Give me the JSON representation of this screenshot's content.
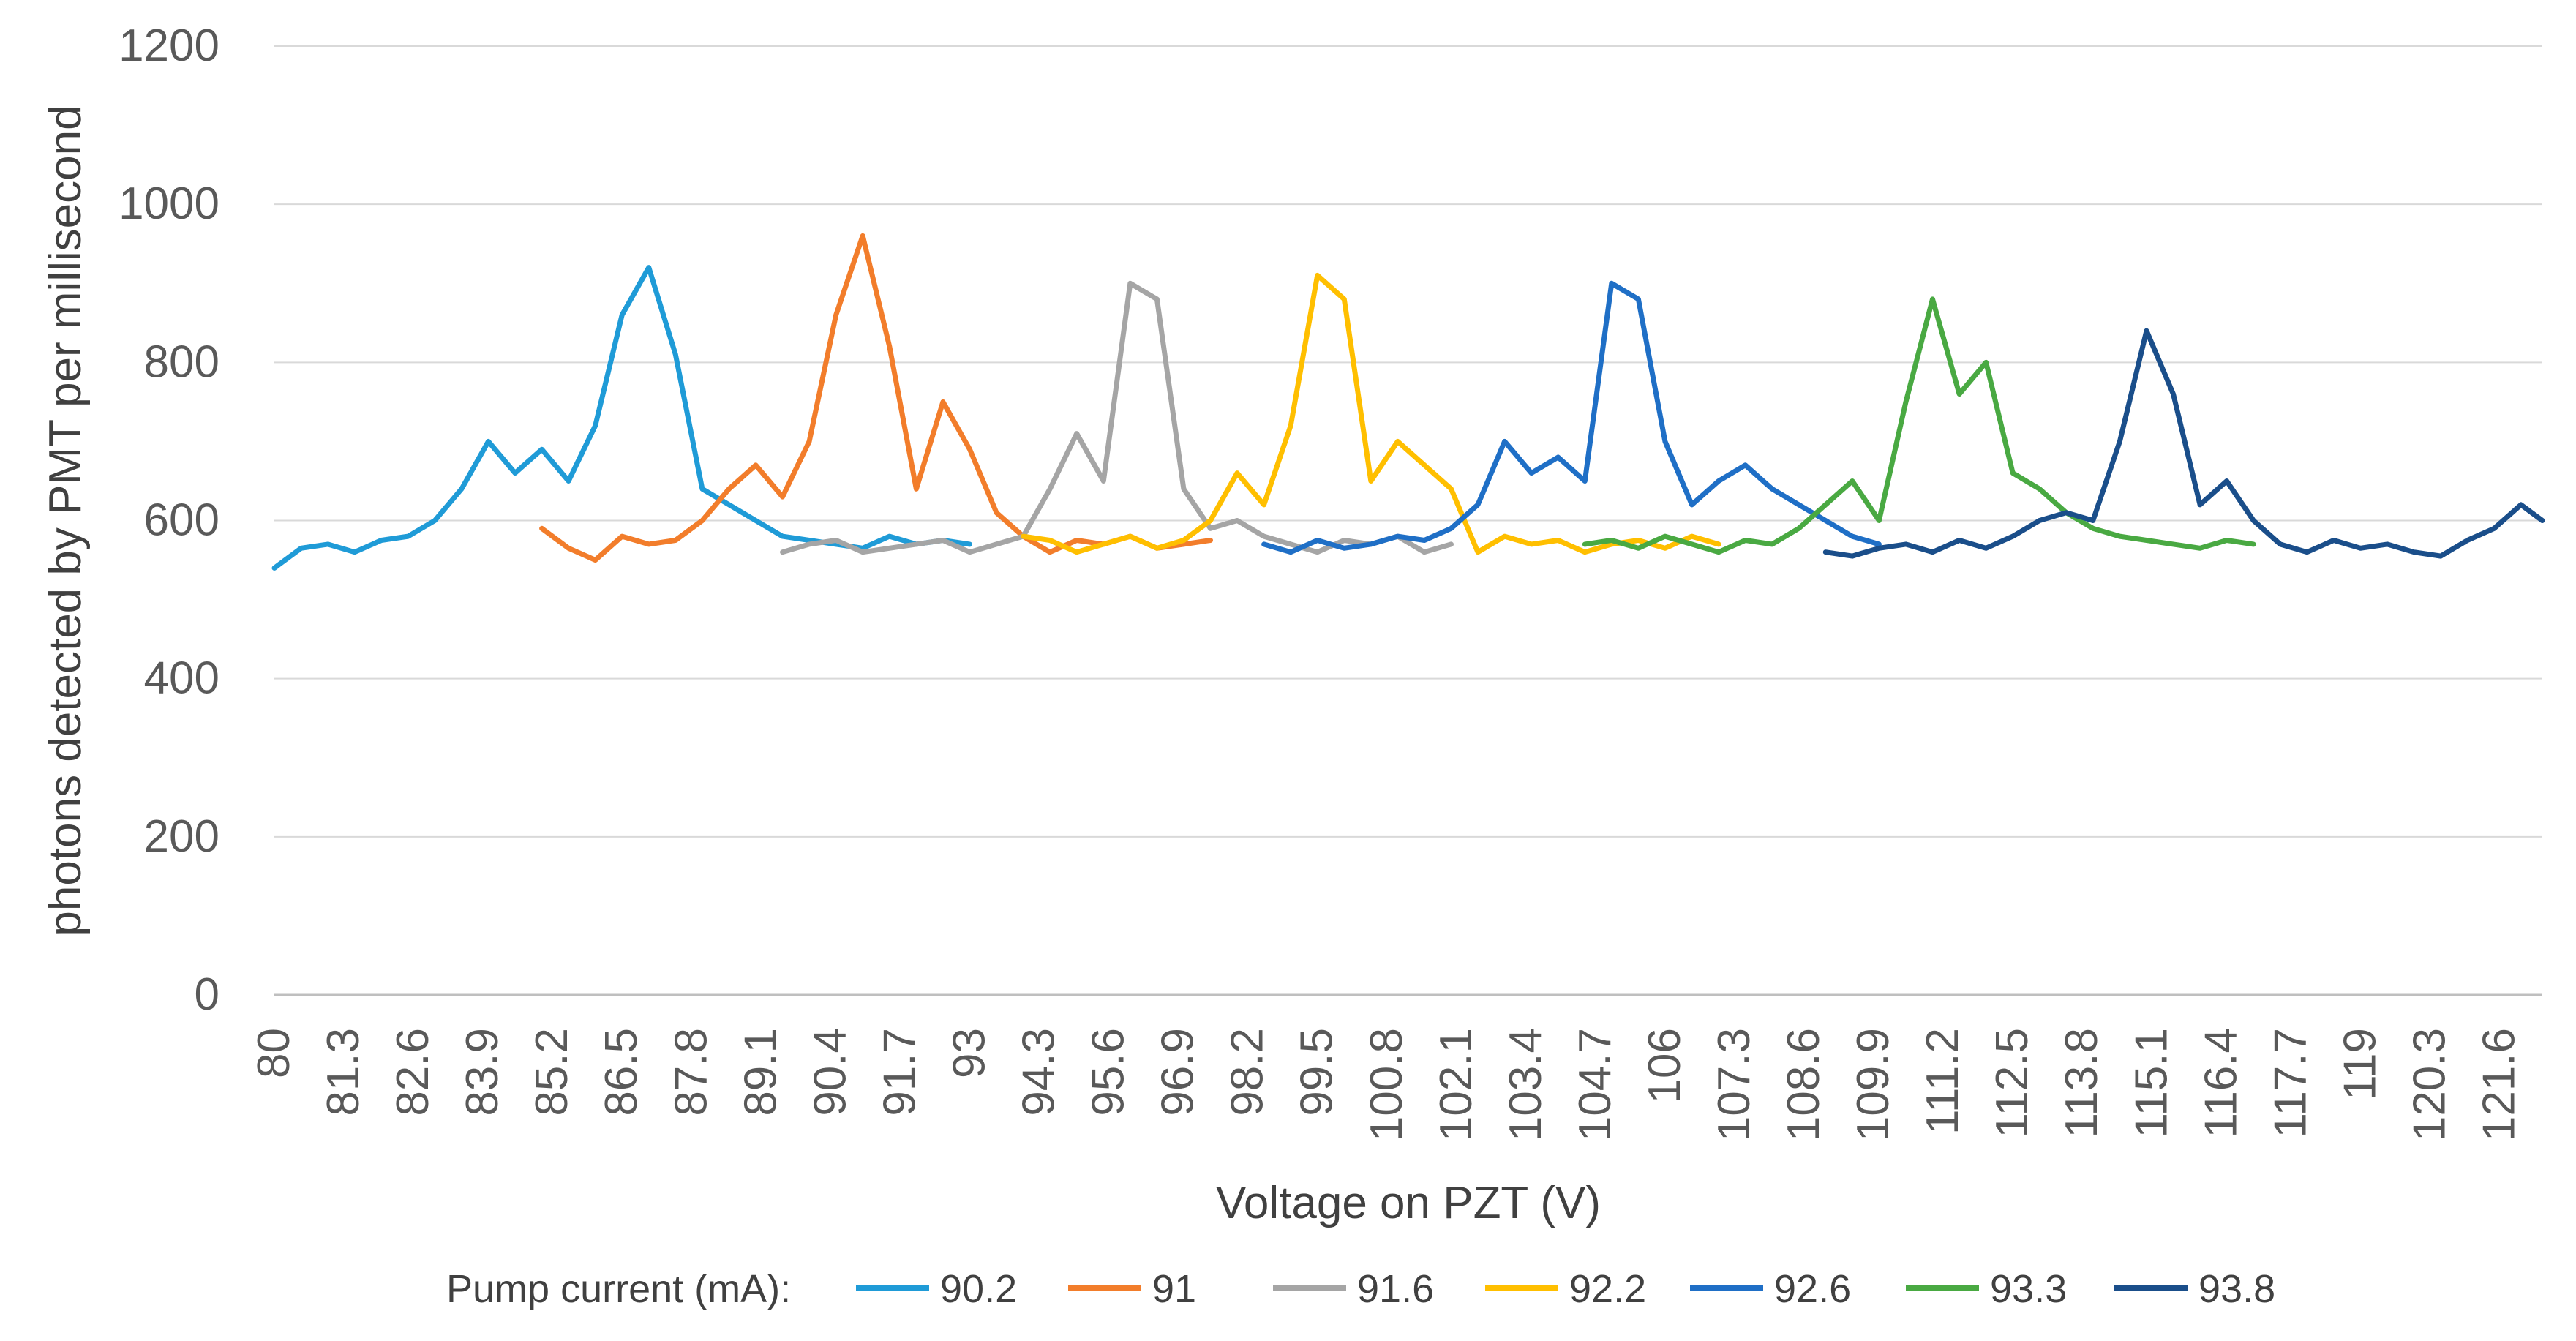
{
  "chart_data": {
    "type": "line",
    "title": "",
    "xlabel": "Voltage on PZT (V)",
    "ylabel": "photons detected by PMT per millisecond",
    "ylim": [
      0,
      1200
    ],
    "yticks": [
      0,
      200,
      400,
      600,
      800,
      1000,
      1200
    ],
    "xlim": [
      80,
      122.4
    ],
    "xtick_labels": [
      "80",
      "81.3",
      "82.6",
      "83.9",
      "85.2",
      "86.5",
      "87.8",
      "89.1",
      "90.4",
      "91.7",
      "93",
      "94.3",
      "95.6",
      "96.9",
      "98.2",
      "99.5",
      "100.8",
      "102.1",
      "103.4",
      "104.7",
      "106",
      "107.3",
      "108.6",
      "109.9",
      "111.2",
      "112.5",
      "113.8",
      "115.1",
      "116.4",
      "117.7",
      "119",
      "120.3",
      "121.6"
    ],
    "grid": "horizontal",
    "legend_position": "bottom",
    "legend_title": "Pump current (mA):",
    "series": [
      {
        "name": "90.2",
        "color": "#1F9BD7",
        "x": [
          80,
          80.5,
          81,
          81.5,
          82,
          82.5,
          83,
          83.5,
          84,
          84.5,
          85,
          85.5,
          86,
          86.5,
          87,
          87.5,
          88,
          88.5,
          89,
          89.5,
          90,
          90.5,
          91,
          91.5,
          92,
          92.5,
          93
        ],
        "y": [
          540,
          565,
          570,
          560,
          575,
          580,
          600,
          640,
          700,
          660,
          690,
          650,
          720,
          860,
          920,
          810,
          640,
          620,
          600,
          580,
          575,
          570,
          565,
          580,
          570,
          575,
          570
        ]
      },
      {
        "name": "91",
        "color": "#F27D2B",
        "x": [
          85,
          85.5,
          86,
          86.5,
          87,
          87.5,
          88,
          88.5,
          89,
          89.5,
          90,
          90.5,
          91,
          91.5,
          92,
          92.5,
          93,
          93.5,
          94,
          94.5,
          95,
          95.5,
          96,
          96.5,
          97,
          97.5
        ],
        "y": [
          590,
          565,
          550,
          580,
          570,
          575,
          600,
          640,
          670,
          630,
          700,
          860,
          960,
          820,
          640,
          750,
          690,
          610,
          580,
          560,
          575,
          570,
          580,
          565,
          570,
          575
        ]
      },
      {
        "name": "91.6",
        "color": "#A5A5A5",
        "x": [
          89.5,
          90,
          90.5,
          91,
          91.5,
          92,
          92.5,
          93,
          93.5,
          94,
          94.5,
          95,
          95.5,
          96,
          96.5,
          97,
          97.5,
          98,
          98.5,
          99,
          99.5,
          100,
          100.5,
          101,
          101.5,
          102
        ],
        "y": [
          560,
          570,
          575,
          560,
          565,
          570,
          575,
          560,
          570,
          580,
          640,
          710,
          650,
          900,
          880,
          640,
          590,
          600,
          580,
          570,
          560,
          575,
          570,
          580,
          560,
          570
        ]
      },
      {
        "name": "92.2",
        "color": "#FFBF00",
        "x": [
          94,
          94.5,
          95,
          95.5,
          96,
          96.5,
          97,
          97.5,
          98,
          98.5,
          99,
          99.5,
          100,
          100.5,
          101,
          101.5,
          102,
          102.5,
          103,
          103.5,
          104,
          104.5,
          105,
          105.5,
          106,
          106.5,
          107
        ],
        "y": [
          580,
          575,
          560,
          570,
          580,
          565,
          575,
          600,
          660,
          620,
          720,
          910,
          880,
          650,
          700,
          670,
          640,
          560,
          580,
          570,
          575,
          560,
          570,
          575,
          565,
          580,
          570
        ]
      },
      {
        "name": "92.6",
        "color": "#1F6FC6",
        "x": [
          98.5,
          99,
          99.5,
          100,
          100.5,
          101,
          101.5,
          102,
          102.5,
          103,
          103.5,
          104,
          104.5,
          105,
          105.5,
          106,
          106.5,
          107,
          107.5,
          108,
          108.5,
          109,
          109.5,
          110
        ],
        "y": [
          570,
          560,
          575,
          565,
          570,
          580,
          575,
          590,
          620,
          700,
          660,
          680,
          650,
          900,
          880,
          700,
          620,
          650,
          670,
          640,
          620,
          600,
          580,
          570
        ]
      },
      {
        "name": "93.3",
        "color": "#49A942",
        "x": [
          104.5,
          105,
          105.5,
          106,
          106.5,
          107,
          107.5,
          108,
          108.5,
          109,
          109.5,
          110,
          110.5,
          111,
          111.5,
          112,
          112.5,
          113,
          113.5,
          114,
          114.5,
          115,
          115.5,
          116,
          116.5,
          117
        ],
        "y": [
          570,
          575,
          565,
          580,
          570,
          560,
          575,
          570,
          590,
          620,
          650,
          600,
          750,
          880,
          760,
          800,
          660,
          640,
          610,
          590,
          580,
          575,
          570,
          565,
          575,
          570
        ]
      },
      {
        "name": "93.8",
        "color": "#1A4E8A",
        "x": [
          109,
          109.5,
          110,
          110.5,
          111,
          111.5,
          112,
          112.5,
          113,
          113.5,
          114,
          114.5,
          115,
          115.5,
          116,
          116.5,
          117,
          117.5,
          118,
          118.5,
          119,
          119.5,
          120,
          120.5,
          121,
          121.5,
          122,
          122.4
        ],
        "y": [
          560,
          555,
          565,
          570,
          560,
          575,
          565,
          580,
          600,
          610,
          600,
          700,
          840,
          760,
          620,
          650,
          600,
          570,
          560,
          575,
          565,
          570,
          560,
          555,
          575,
          590,
          620,
          600
        ]
      }
    ]
  }
}
